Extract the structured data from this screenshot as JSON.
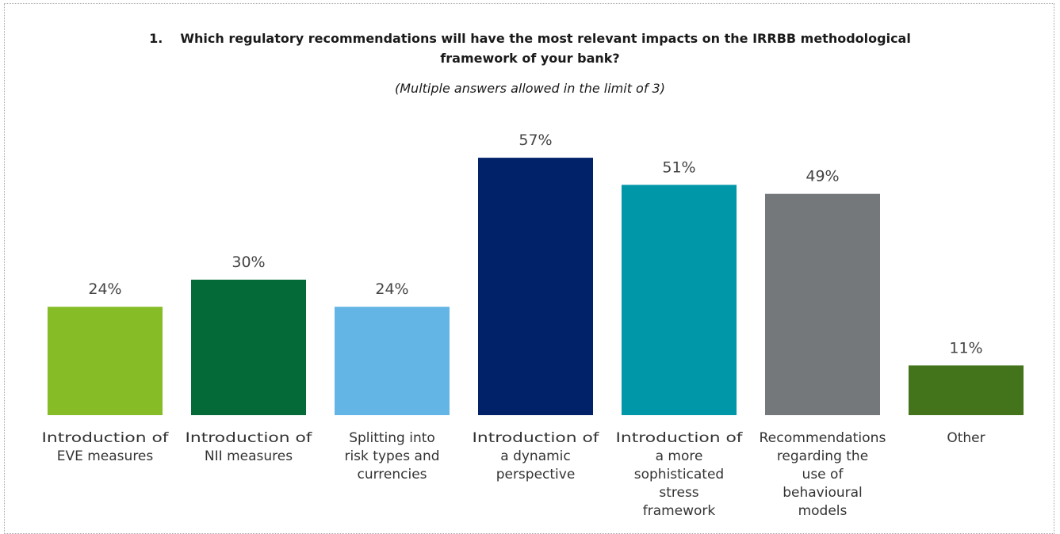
{
  "chart_data": {
    "type": "bar",
    "title_number": "1.",
    "title_line1": "Which regulatory recommendations will have the most relevant impacts on the IRRBB methodological",
    "title_line2": "framework of your bank?",
    "subtitle": "(Multiple answers allowed in the limit of 3)",
    "categories": [
      [
        "Introduction of",
        "EVE measures"
      ],
      [
        "Introduction of",
        "NII measures"
      ],
      [
        "Splitting into",
        "risk types and",
        "currencies"
      ],
      [
        "Introduction of",
        "a dynamic",
        "perspective"
      ],
      [
        "Introduction of",
        "a more",
        "sophisticated",
        "stress",
        "framework"
      ],
      [
        "Recommendations",
        "regarding the",
        "use of",
        "behavioural",
        "models"
      ],
      [
        "Other"
      ]
    ],
    "values": [
      24,
      30,
      24,
      57,
      51,
      49,
      11
    ],
    "value_labels": [
      "24%",
      "30%",
      "24%",
      "57%",
      "51%",
      "49%",
      "11%"
    ],
    "colors": [
      "#86bc25",
      "#046a38",
      "#62b5e5",
      "#012169",
      "#0097a9",
      "#75787b",
      "#43731b"
    ],
    "xlabel": "",
    "ylabel": ""
  }
}
